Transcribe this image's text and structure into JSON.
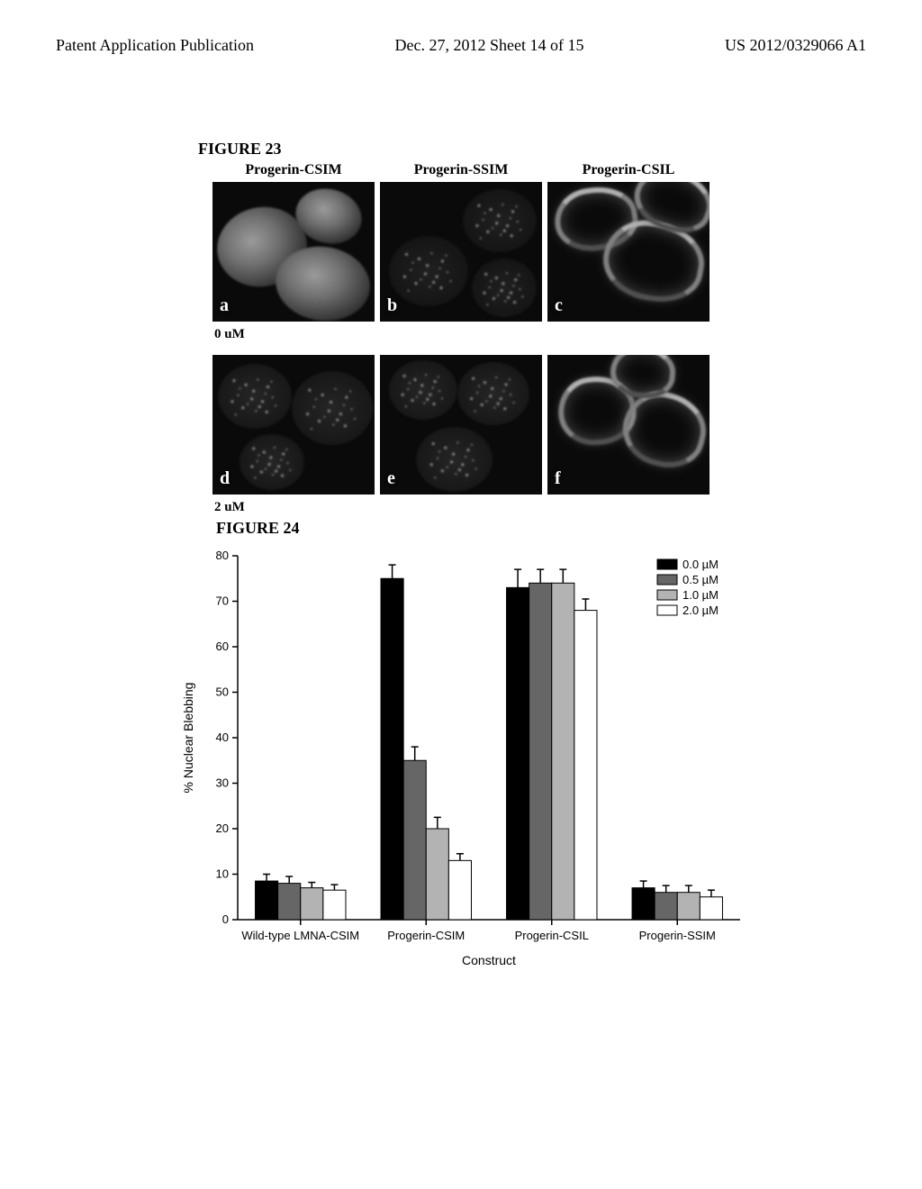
{
  "header": {
    "left": "Patent Application Publication",
    "center": "Dec. 27, 2012  Sheet 14 of 15",
    "right": "US 2012/0329066 A1"
  },
  "figure23": {
    "label": "FIGURE 23",
    "columns": [
      "Progerin-CSIM",
      "Progerin-SSIM",
      "Progerin-CSIL"
    ],
    "row1_caption": "0 uM",
    "row2_caption": "2 uM",
    "letters_row1": [
      "a",
      "b",
      "c"
    ],
    "letters_row2": [
      "d",
      "e",
      "f"
    ]
  },
  "figure24": {
    "label": "FIGURE 24",
    "chart": {
      "type": "bar",
      "ylabel": "% Nuclear Blebbing",
      "xlabel": "Construct",
      "ylim": [
        0,
        80
      ],
      "ytick_step": 10,
      "categories": [
        "Wild-type LMNA-CSIM",
        "Progerin-CSIM",
        "Progerin-CSIL",
        "Progerin-SSIM"
      ],
      "series": [
        {
          "label": "0.0 µM",
          "fill": "#000000",
          "values": [
            8.5,
            75,
            73,
            7
          ],
          "errors": [
            1.5,
            3,
            4,
            1.5
          ]
        },
        {
          "label": "0.5 µM",
          "fill": "#666666",
          "values": [
            8,
            35,
            74,
            6
          ],
          "errors": [
            1.5,
            3,
            3,
            1.5
          ]
        },
        {
          "label": "1.0 µM",
          "fill": "#b3b3b3",
          "values": [
            7,
            20,
            74,
            6
          ],
          "errors": [
            1.2,
            2.5,
            3,
            1.5
          ]
        },
        {
          "label": "2.0 µM",
          "fill": "#ffffff",
          "values": [
            6.5,
            13,
            68,
            5
          ],
          "errors": [
            1.2,
            1.5,
            2.5,
            1.5
          ]
        }
      ],
      "background_color": "#ffffff",
      "axis_color": "#000000",
      "bar_group_width": 0.72,
      "label_fontsize": 13,
      "title_fontsize": 14
    }
  }
}
